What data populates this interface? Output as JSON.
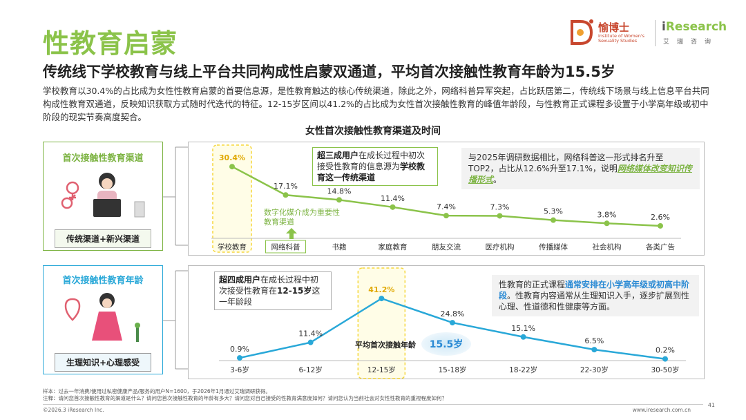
{
  "header": {
    "title": "性教育启蒙",
    "subtitle": "传统线下学校教育与线上平台共同构成性启蒙双通道，平均首次接触性教育年龄为15.5岁",
    "body": "学校教育以30.4%的占比成为女性性教育启蒙的首要信息源，是性教育触达的核心传统渠道，除此之外，网络科普异军突起，占比跃居第二，传统线下场景与线上信息平台共同构成性教育双通道，反映知识获取方式随时代迭代的特征。12-15岁区间以41.2%的占比成为女性首次接触性教育的峰值年龄段，与性教育正式课程多设置于小学高年级或初中阶段的现实节奏高度契合。",
    "chart_title": "女性首次接触性教育渠道及时间"
  },
  "logo": {
    "brand1": "愉博士",
    "brand1_sub": "Institute of Women's Sexuality Studies",
    "brand2_i": "i",
    "brand2": "Research",
    "brand2_sub": "艾瑞咨询"
  },
  "panel1": {
    "label": "首次接触性教育渠道",
    "tag": "传统渠道+新兴渠道",
    "callout_left_b1": "超三成用户",
    "callout_left_t1": "在成长过程中初次接受性教育的信息源为",
    "callout_left_b2": "学校教育这一传统渠道",
    "callout_mid": "数字化媒介成为重要性教育渠道",
    "callout_right_t1": "与2025年调研数据相比，网络科普这一形式排名升至TOP2，占比从12.6%升至17.1%，说明",
    "callout_right_g": "网络媒体改变知识传播形式",
    "callout_right_t2": "。"
  },
  "panel2": {
    "label": "首次接触性教育年龄",
    "tag": "生理知识+心理感受",
    "callout_left_b1": "超四成用户",
    "callout_left_t1": "在成长过程中初次接受性教育在",
    "callout_left_b2": "12-15岁",
    "callout_left_t2": "这一年龄段",
    "avg_label": "平均首次接触年龄",
    "avg_value": "15.5岁",
    "callout_right_t1": "性教育的正式课程",
    "callout_right_h": "通常安排在小学高年级或初高中阶段",
    "callout_right_t2": "。性教育内容通常从生理知识入手，逐步扩展到性心理、性道德和性健康等方面。"
  },
  "chart_data": [
    {
      "type": "line",
      "title": "首次接触性教育渠道",
      "categories": [
        "学校教育",
        "网络科普",
        "书籍",
        "家庭教育",
        "朋友交流",
        "医疗机构",
        "传播媒体",
        "社会机构",
        "各类广告"
      ],
      "values": [
        30.4,
        17.1,
        14.8,
        11.4,
        7.4,
        7.3,
        5.3,
        3.8,
        2.6
      ],
      "labels": [
        "30.4%",
        "17.1%",
        "14.8%",
        "11.4%",
        "7.4%",
        "7.3%",
        "5.3%",
        "3.8%",
        "2.6%"
      ],
      "unit": "%",
      "color": "#8bc34a",
      "highlight": [
        "学校教育"
      ],
      "ylim": [
        0,
        35
      ]
    },
    {
      "type": "line",
      "title": "首次接触性教育年龄",
      "categories": [
        "3-6岁",
        "6-12岁",
        "12-15岁",
        "15-18岁",
        "18-22岁",
        "22-30岁",
        "30-50岁"
      ],
      "values": [
        0.9,
        11.4,
        41.2,
        24.8,
        15.1,
        6.5,
        0.2
      ],
      "labels": [
        "0.9%",
        "11.4%",
        "41.2%",
        "24.8%",
        "15.1%",
        "6.5%",
        "0.2%"
      ],
      "unit": "%",
      "color": "#29a8d8",
      "highlight": [
        "12-15岁"
      ],
      "ylim": [
        0,
        45
      ]
    }
  ],
  "footer": {
    "source": "样本：过去一年消费/使用过私密健康产品/服务的用户N=1600，于2026年1月通过艾瑞调研获得。",
    "note": "注释：请问您首次接触性教育的渠道是什么？请问您首次接触性教育的年龄有多大？请问您对自己接受的性教育满意度如何？请问您认为当前社会对女性性教育的重视程度如何？",
    "copyright": "©2026.3 iResearch Inc.",
    "url": "www.iresearch.com.cn",
    "page": "41"
  },
  "colors": {
    "green": "#8bc34a",
    "blue": "#29a8d8",
    "yellow": "#f5d63a"
  }
}
